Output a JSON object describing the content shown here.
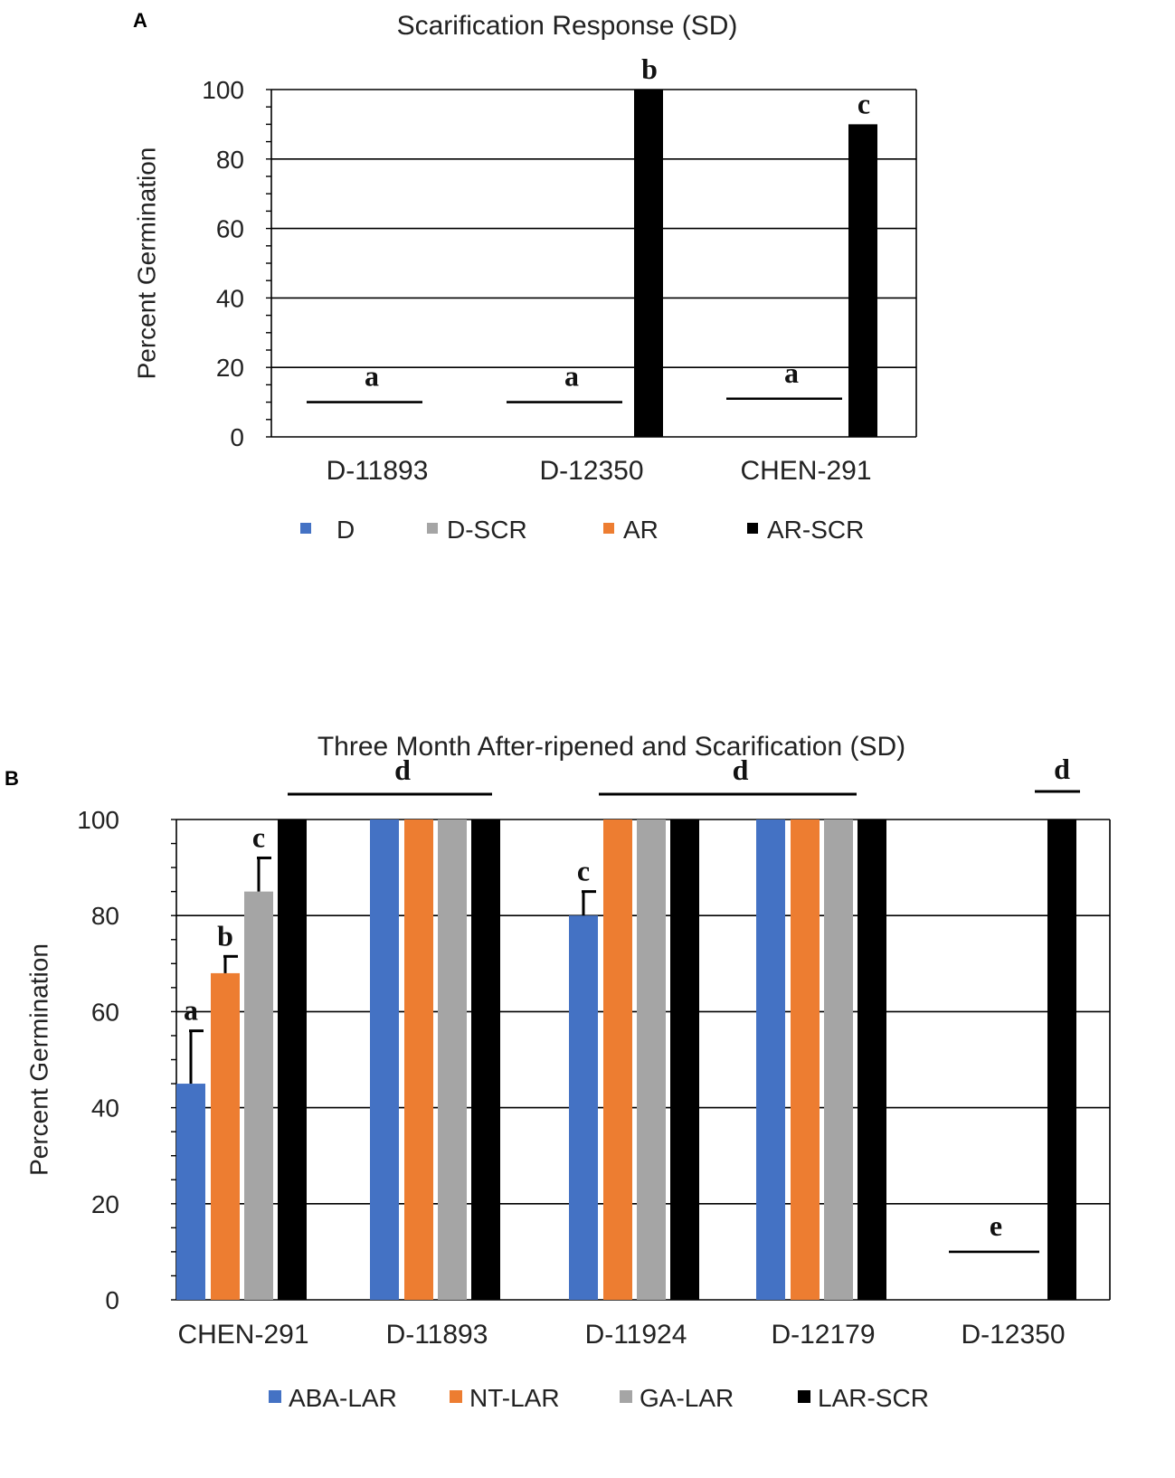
{
  "chart_data": [
    {
      "panel": "A",
      "type": "bar",
      "title": "Scarification Response (SD)",
      "ylabel": "Percent Germination",
      "xlabel": "",
      "ylim": [
        0,
        100
      ],
      "yticks": [
        0,
        20,
        40,
        60,
        80,
        100
      ],
      "grid": true,
      "legend_position": "bottom",
      "categories": [
        "D-11893",
        "D-12350",
        "CHEN-291"
      ],
      "series": [
        {
          "name": "D",
          "color": "#4472C4",
          "values": [
            0,
            0,
            0
          ]
        },
        {
          "name": "D-SCR",
          "color": "#A5A5A5",
          "values": [
            0,
            0,
            0
          ]
        },
        {
          "name": "AR",
          "color": "#ED7D31",
          "values": [
            0,
            0,
            0
          ]
        },
        {
          "name": "AR-SCR",
          "color": "#000000",
          "values": [
            0,
            100,
            90
          ]
        }
      ],
      "annotations": [
        {
          "label": "a",
          "category": 0,
          "line_y": 10
        },
        {
          "label": "a",
          "category": 1,
          "line_y": 10
        },
        {
          "label": "b",
          "category": 1,
          "series": 3
        },
        {
          "label": "a",
          "category": 2,
          "line_y": 11
        },
        {
          "label": "c",
          "category": 2,
          "series": 3
        }
      ]
    },
    {
      "panel": "B",
      "type": "bar",
      "title": "Three Month After-ripened and Scarification (SD)",
      "ylabel": "Percent Germination",
      "xlabel": "",
      "ylim": [
        0,
        100
      ],
      "yticks": [
        0,
        20,
        40,
        60,
        80,
        100
      ],
      "grid": true,
      "legend_position": "bottom",
      "categories": [
        "CHEN-291",
        "D-11893",
        "D-11924",
        "D-12179",
        "D-12350"
      ],
      "series": [
        {
          "name": "ABA-LAR",
          "color": "#4472C4",
          "values": [
            45,
            100,
            80,
            100,
            0
          ],
          "errors": [
            11,
            0,
            5,
            0,
            0
          ]
        },
        {
          "name": "NT-LAR",
          "color": "#ED7D31",
          "values": [
            68,
            100,
            100,
            100,
            0
          ],
          "errors": [
            3.5,
            0,
            0,
            0,
            0
          ]
        },
        {
          "name": "GA-LAR",
          "color": "#A5A5A5",
          "values": [
            85,
            100,
            100,
            100,
            0
          ],
          "errors": [
            7,
            0,
            0,
            0,
            0
          ]
        },
        {
          "name": "LAR-SCR",
          "color": "#000000",
          "values": [
            100,
            100,
            100,
            100,
            100
          ],
          "errors": [
            0,
            0,
            0,
            0,
            0
          ]
        }
      ],
      "annotations": [
        {
          "label": "a",
          "category": 0,
          "series": 0
        },
        {
          "label": "b",
          "category": 0,
          "series": 1
        },
        {
          "label": "c",
          "category": 0,
          "series": 2
        },
        {
          "label": "d",
          "span": [
            0,
            1
          ],
          "y": 106
        },
        {
          "label": "c",
          "category": 2,
          "series": 0
        },
        {
          "label": "d",
          "span": [
            2,
            3
          ],
          "y": 106
        },
        {
          "label": "d",
          "category": 4,
          "series": 3,
          "y": 106
        },
        {
          "label": "e",
          "category": 4,
          "line_y": 10
        }
      ]
    }
  ]
}
